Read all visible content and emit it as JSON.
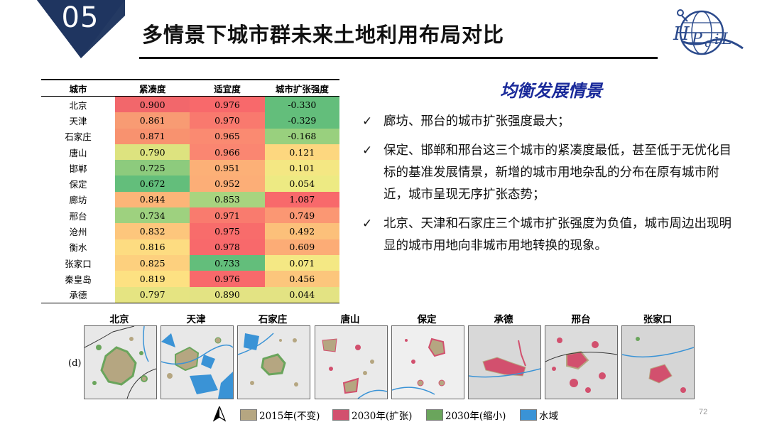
{
  "header": {
    "section_number": "05",
    "title": "多情景下城市群未来土地利用布局对比",
    "logo_text": "HPcil"
  },
  "table": {
    "headers": [
      "城市",
      "紧凑度",
      "适宜度",
      "城市扩张强度"
    ],
    "rows": [
      {
        "city": "北京",
        "c": "0.900",
        "s": "0.976",
        "e": "-0.330",
        "colors": [
          "#f2676b",
          "#f8696b",
          "#63be7b"
        ]
      },
      {
        "city": "天津",
        "c": "0.861",
        "s": "0.970",
        "e": "-0.329",
        "colors": [
          "#f89b73",
          "#f9796e",
          "#63be7b"
        ]
      },
      {
        "city": "石家庄",
        "c": "0.871",
        "s": "0.965",
        "e": "-0.168",
        "colors": [
          "#f8926f",
          "#fa8a71",
          "#99d07e"
        ]
      },
      {
        "city": "唐山",
        "c": "0.790",
        "s": "0.966",
        "e": "0.121",
        "colors": [
          "#dde37f",
          "#fa8671",
          "#fdd77f"
        ]
      },
      {
        "city": "邯郸",
        "c": "0.725",
        "s": "0.951",
        "e": "0.101",
        "colors": [
          "#8dcb7d",
          "#fcb077",
          "#f4e783"
        ]
      },
      {
        "city": "保定",
        "c": "0.672",
        "s": "0.952",
        "e": "0.054",
        "colors": [
          "#63be7b",
          "#fcae77",
          "#edea83"
        ]
      },
      {
        "city": "廊坊",
        "c": "0.844",
        "s": "0.853",
        "e": "1.087",
        "colors": [
          "#fcb578",
          "#a8d47f",
          "#f8696b"
        ]
      },
      {
        "city": "邢台",
        "c": "0.734",
        "s": "0.971",
        "e": "0.749",
        "colors": [
          "#9ed17f",
          "#f97b6e",
          "#fb9773"
        ]
      },
      {
        "city": "沧州",
        "c": "0.832",
        "s": "0.975",
        "e": "0.492",
        "colors": [
          "#fdc67c",
          "#f86c6b",
          "#fcc07a"
        ]
      },
      {
        "city": "衡水",
        "c": "0.816",
        "s": "0.978",
        "e": "0.609",
        "colors": [
          "#fddc81",
          "#f8696b",
          "#fcac76"
        ]
      },
      {
        "city": "张家口",
        "c": "0.825",
        "s": "0.733",
        "e": "0.071",
        "colors": [
          "#fdd07e",
          "#63be7b",
          "#f4e884"
        ]
      },
      {
        "city": "秦皇岛",
        "c": "0.819",
        "s": "0.976",
        "e": "0.456",
        "colors": [
          "#fde182",
          "#f8696b",
          "#fcc67c"
        ]
      },
      {
        "city": "承德",
        "c": "0.797",
        "s": "0.890",
        "e": "0.044",
        "colors": [
          "#e5e482",
          "#e3e383",
          "#e3e383"
        ]
      }
    ]
  },
  "panel": {
    "heading": "均衡发展情景",
    "bullets": [
      "廊坊、邢台的城市扩张强度最大；",
      "保定、邯郸和邢台这三个城市的紧凑度最低，甚至低于无优化目标的基准发展情景，新增的城市用地杂乱的分布在原有城市附近，城市呈现无序扩张态势；",
      "北京、天津和石家庄三个城市扩张强度为负值，城市周边出现明显的城市用地向非城市用地转换的现象。"
    ]
  },
  "maps": {
    "figure_label": "(d)",
    "panels": [
      "北京",
      "天津",
      "石家庄",
      "唐山",
      "保定",
      "承德",
      "邢台",
      "张家口"
    ]
  },
  "legend": {
    "items": [
      {
        "label": "2015年(不变)",
        "color": "#b5a681"
      },
      {
        "label": "2030年(扩张)",
        "color": "#d2506e"
      },
      {
        "label": "2030年(缩小)",
        "color": "#6aa55c"
      },
      {
        "label": "水域",
        "color": "#3a93d6"
      }
    ]
  },
  "footer": {
    "page_number": "72"
  }
}
